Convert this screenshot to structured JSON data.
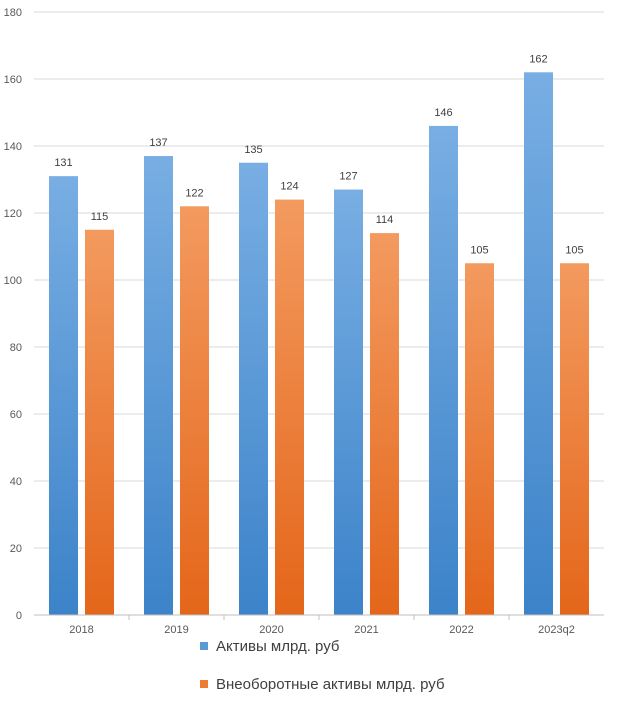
{
  "chart_data": {
    "type": "bar",
    "categories": [
      "2018",
      "2019",
      "2020",
      "2021",
      "2022",
      "2023q2"
    ],
    "series": [
      {
        "name": "Активы млрд. руб",
        "values": [
          131,
          137,
          135,
          127,
          146,
          162
        ],
        "color": "#4a90d9"
      },
      {
        "name": "Внеоборотные активы млрд. руб",
        "values": [
          115,
          122,
          124,
          114,
          105,
          105
        ],
        "color": "#ed7d31"
      }
    ],
    "ylim": [
      0,
      180
    ],
    "yticks": [
      0,
      20,
      40,
      60,
      80,
      100,
      120,
      140,
      160,
      180
    ],
    "grid": true,
    "legend_position": "bottom"
  }
}
